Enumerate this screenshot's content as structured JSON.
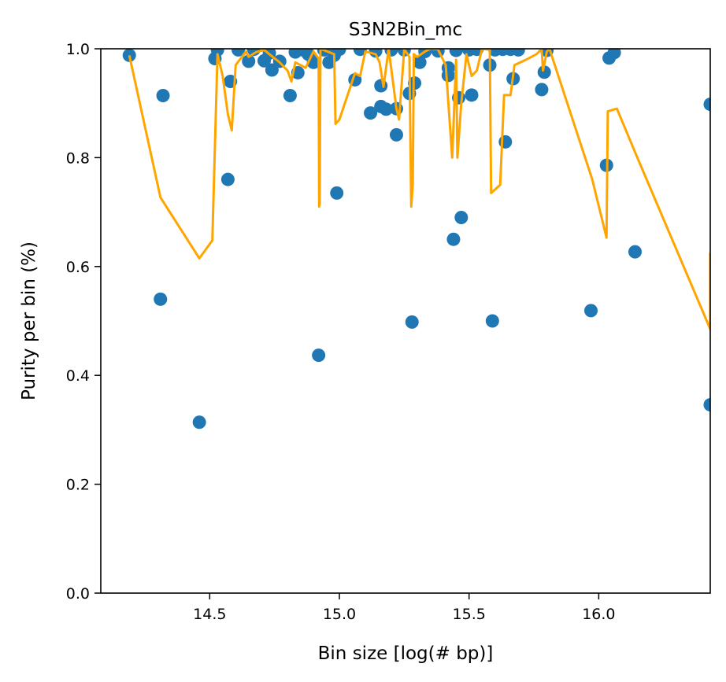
{
  "chart_data": {
    "type": "scatter",
    "title": "S3N2Bin_mc",
    "xlabel": "Bin size [log(# bp)]",
    "ylabel": "Purity per bin (%)",
    "xlim": [
      14.08,
      16.43
    ],
    "ylim": [
      0.0,
      1.0
    ],
    "xticks": [
      14.5,
      15.0,
      15.5,
      16.0
    ],
    "xtick_labels": [
      "14.5",
      "15.0",
      "15.5",
      "16.0"
    ],
    "yticks": [
      0.0,
      0.2,
      0.4,
      0.6,
      0.8,
      1.0
    ],
    "ytick_labels": [
      "0.0",
      "0.2",
      "0.4",
      "0.6",
      "0.8",
      "1.0"
    ],
    "grid": false,
    "colors": {
      "points": "#1f77b4",
      "line": "#ffa500"
    },
    "series": [
      {
        "kind": "scatter",
        "points": [
          [
            14.19,
            0.988
          ],
          [
            14.31,
            0.54
          ],
          [
            14.32,
            0.914
          ],
          [
            14.46,
            0.314
          ],
          [
            14.52,
            0.982
          ],
          [
            14.53,
            0.998
          ],
          [
            14.57,
            0.76
          ],
          [
            14.58,
            0.94
          ],
          [
            14.61,
            0.998
          ],
          [
            14.65,
            0.977
          ],
          [
            14.67,
            0.999
          ],
          [
            14.71,
            0.978
          ],
          [
            14.73,
            0.992
          ],
          [
            14.74,
            0.961
          ],
          [
            14.77,
            0.977
          ],
          [
            14.81,
            0.914
          ],
          [
            14.83,
            0.994
          ],
          [
            14.84,
            0.956
          ],
          [
            14.86,
            0.998
          ],
          [
            14.88,
            0.99
          ],
          [
            14.9,
            0.975
          ],
          [
            14.92,
            0.437
          ],
          [
            14.94,
            0.998
          ],
          [
            14.96,
            0.975
          ],
          [
            14.98,
            0.988
          ],
          [
            14.99,
            0.735
          ],
          [
            15.0,
            0.999
          ],
          [
            15.06,
            0.943
          ],
          [
            15.08,
            0.999
          ],
          [
            15.12,
            0.882
          ],
          [
            15.14,
            0.996
          ],
          [
            15.16,
            0.932
          ],
          [
            15.16,
            0.894
          ],
          [
            15.18,
            0.889
          ],
          [
            15.2,
            0.998
          ],
          [
            15.22,
            0.89
          ],
          [
            15.22,
            0.842
          ],
          [
            15.25,
            0.998
          ],
          [
            15.27,
            0.918
          ],
          [
            15.28,
            0.498
          ],
          [
            15.29,
            0.937
          ],
          [
            15.31,
            0.975
          ],
          [
            15.33,
            0.995
          ],
          [
            15.38,
            0.996
          ],
          [
            15.42,
            0.965
          ],
          [
            15.42,
            0.951
          ],
          [
            15.44,
            0.65
          ],
          [
            15.45,
            0.997
          ],
          [
            15.46,
            0.91
          ],
          [
            15.47,
            0.69
          ],
          [
            15.5,
            0.998
          ],
          [
            15.51,
            0.915
          ],
          [
            15.53,
            0.999
          ],
          [
            15.58,
            0.97
          ],
          [
            15.59,
            0.5
          ],
          [
            15.6,
            0.998
          ],
          [
            15.63,
            0.999
          ],
          [
            15.64,
            0.829
          ],
          [
            15.66,
            0.999
          ],
          [
            15.67,
            0.945
          ],
          [
            15.69,
            0.998
          ],
          [
            15.78,
            0.925
          ],
          [
            15.79,
            0.957
          ],
          [
            15.8,
            0.997
          ],
          [
            15.97,
            0.519
          ],
          [
            16.03,
            0.786
          ],
          [
            16.04,
            0.983
          ],
          [
            16.06,
            0.993
          ],
          [
            16.14,
            0.627
          ],
          [
            16.43,
            0.898
          ],
          [
            16.43,
            0.346
          ]
        ]
      },
      {
        "kind": "line",
        "points": [
          [
            14.19,
            0.988
          ],
          [
            14.31,
            0.727
          ],
          [
            14.46,
            0.615
          ],
          [
            14.51,
            0.648
          ],
          [
            14.53,
            0.99
          ],
          [
            14.55,
            0.95
          ],
          [
            14.57,
            0.88
          ],
          [
            14.585,
            0.85
          ],
          [
            14.6,
            0.97
          ],
          [
            14.64,
            0.995
          ],
          [
            14.65,
            0.985
          ],
          [
            14.68,
            0.994
          ],
          [
            14.71,
            0.998
          ],
          [
            14.73,
            0.99
          ],
          [
            14.77,
            0.975
          ],
          [
            14.8,
            0.96
          ],
          [
            14.815,
            0.94
          ],
          [
            14.83,
            0.975
          ],
          [
            14.87,
            0.965
          ],
          [
            14.9,
            0.995
          ],
          [
            14.92,
            0.982
          ],
          [
            14.922,
            0.71
          ],
          [
            14.924,
            0.715
          ],
          [
            14.927,
            1.0
          ],
          [
            14.98,
            0.99
          ],
          [
            14.985,
            0.862
          ],
          [
            15.0,
            0.87
          ],
          [
            15.06,
            0.955
          ],
          [
            15.08,
            0.95
          ],
          [
            15.1,
            0.995
          ],
          [
            15.14,
            0.99
          ],
          [
            15.155,
            0.975
          ],
          [
            15.17,
            0.93
          ],
          [
            15.19,
            1.0
          ],
          [
            15.22,
            0.89
          ],
          [
            15.23,
            0.87
          ],
          [
            15.25,
            0.999
          ],
          [
            15.27,
            0.985
          ],
          [
            15.277,
            0.71
          ],
          [
            15.283,
            0.75
          ],
          [
            15.287,
            0.99
          ],
          [
            15.3,
            0.985
          ],
          [
            15.33,
            0.995
          ],
          [
            15.35,
            1.0
          ],
          [
            15.38,
            0.999
          ],
          [
            15.41,
            0.97
          ],
          [
            15.435,
            0.8
          ],
          [
            15.45,
            0.98
          ],
          [
            15.455,
            0.8
          ],
          [
            15.47,
            0.9
          ],
          [
            15.49,
            0.99
          ],
          [
            15.51,
            0.95
          ],
          [
            15.53,
            0.96
          ],
          [
            15.55,
            1.0
          ],
          [
            15.58,
            0.998
          ],
          [
            15.585,
            0.735
          ],
          [
            15.62,
            0.75
          ],
          [
            15.635,
            0.915
          ],
          [
            15.66,
            0.915
          ],
          [
            15.675,
            0.97
          ],
          [
            15.72,
            0.98
          ],
          [
            15.76,
            0.99
          ],
          [
            15.78,
            1.0
          ],
          [
            15.785,
            0.96
          ],
          [
            15.8,
            0.995
          ],
          [
            15.81,
            1.0
          ],
          [
            15.975,
            0.76
          ],
          [
            16.03,
            0.653
          ],
          [
            16.035,
            0.885
          ],
          [
            16.07,
            0.89
          ],
          [
            16.14,
            0.81
          ],
          [
            16.43,
            0.485
          ],
          [
            16.43,
            0.625
          ]
        ]
      }
    ]
  }
}
